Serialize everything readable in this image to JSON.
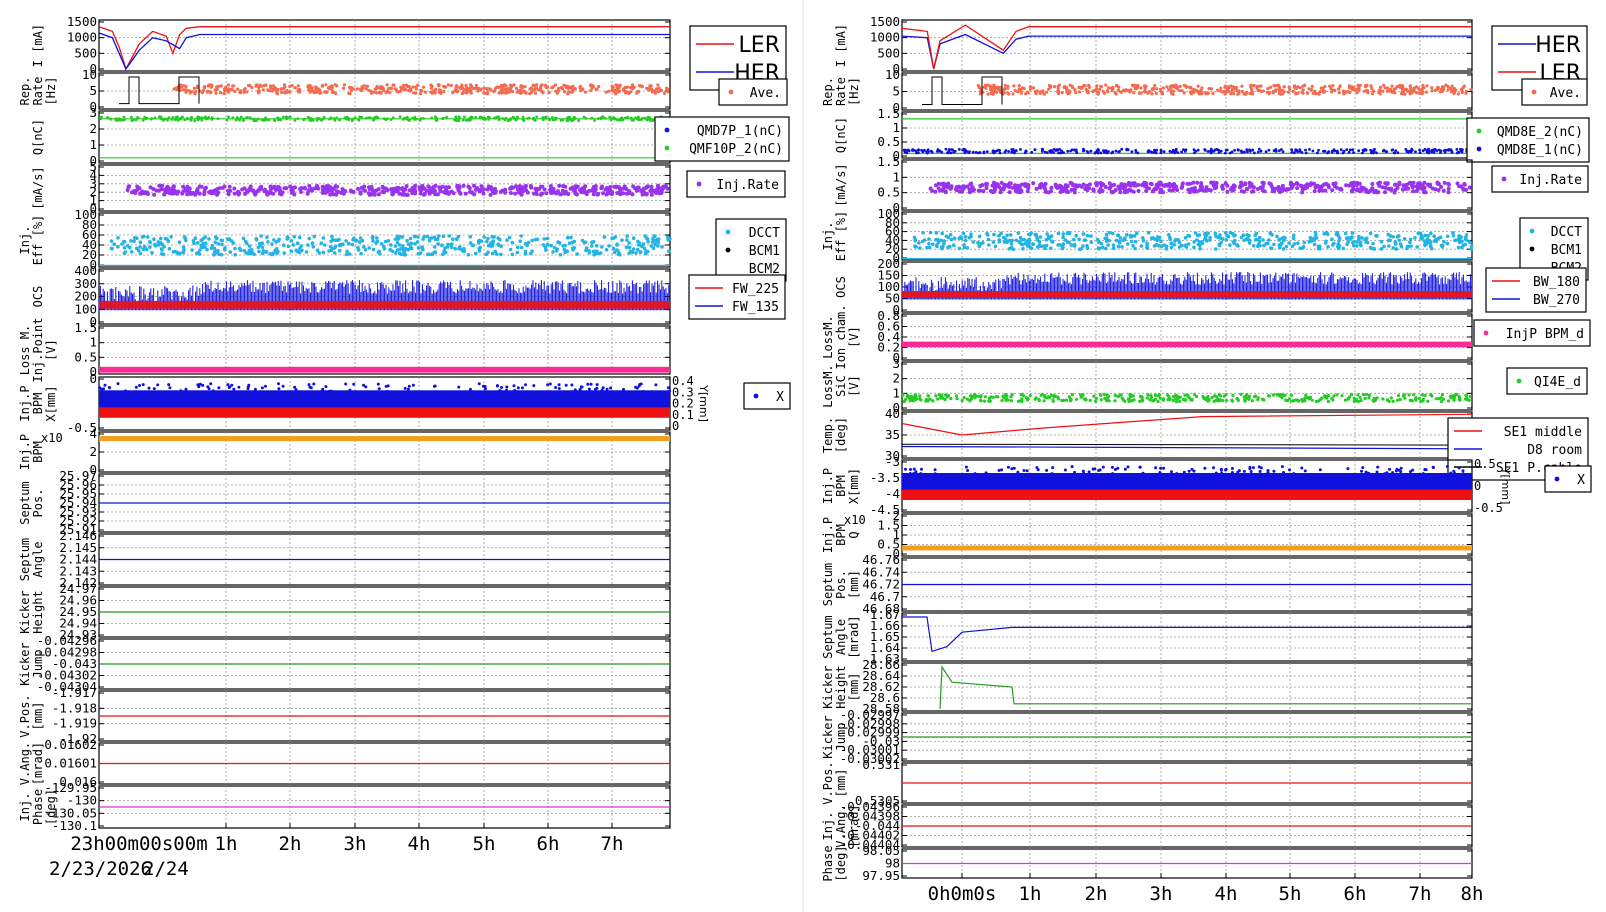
{
  "window": {
    "title": ""
  },
  "colors": {
    "red": "#ee1111",
    "blue": "#1111dd",
    "orange_red": "#f46b50",
    "green": "#22cc22",
    "purple": "#9933ee",
    "cyan": "#22b4e4",
    "black": "#000000",
    "pink": "#ff2a95",
    "orange": "#f0a020",
    "darkgreen": "#229922",
    "magenta": "#dd33dd",
    "grid": "#9a9a9a"
  },
  "left": {
    "x_ticks": [
      "23h00m00s00m",
      "1h",
      "2h",
      "3h",
      "4h",
      "5h",
      "6h",
      "7h"
    ],
    "date_label": "2/23/2026",
    "date_label2": "2/24",
    "panels": [
      {
        "id": "current",
        "ylabel": [
          "I [mA]"
        ],
        "ticks": [
          "1500",
          "1000",
          "500",
          "0"
        ],
        "legend": [
          {
            "label": "LER",
            "color": "red",
            "kind": "line"
          },
          {
            "label": "HER",
            "color": "blue",
            "kind": "line"
          }
        ]
      },
      {
        "id": "rep",
        "ylabel": [
          "Rep.",
          "Rate",
          "[Hz]"
        ],
        "ticks": [
          "10",
          "5",
          "0"
        ],
        "legend": [
          {
            "label": "Ave.",
            "color": "orange_red",
            "kind": "dot"
          }
        ]
      },
      {
        "id": "charge",
        "ylabel": [
          "Q[nC]"
        ],
        "ticks": [
          "3",
          "2",
          "1",
          "0"
        ],
        "legend": [
          {
            "label": "QMD7P_1(nC)",
            "color": "blue",
            "kind": "dot"
          },
          {
            "label": "QMF10P_2(nC)",
            "color": "green",
            "kind": "dot"
          }
        ]
      },
      {
        "id": "injrate",
        "ylabel": [
          "[mA/s]"
        ],
        "ticks": [
          "5",
          "4",
          "3",
          "2",
          "1",
          "0"
        ],
        "legend": [
          {
            "label": "Inj.Rate",
            "color": "purple",
            "kind": "dot"
          }
        ]
      },
      {
        "id": "eff",
        "ylabel": [
          "Inj.",
          "Eff [%]"
        ],
        "ticks": [
          "100",
          "80",
          "60",
          "40",
          "20",
          "0"
        ],
        "legend": [
          {
            "label": "DCCT",
            "color": "cyan",
            "kind": "dot"
          },
          {
            "label": "BCM1",
            "color": "black",
            "kind": "dot"
          },
          {
            "label": "BCM2",
            "color": "black",
            "kind": "none"
          }
        ]
      },
      {
        "id": "ocs",
        "ylabel": [
          "OCS"
        ],
        "ticks": [
          "400",
          "300",
          "200",
          "100",
          "0"
        ],
        "legend": [
          {
            "label": "FW_225",
            "color": "red",
            "kind": "line"
          },
          {
            "label": "FW_135",
            "color": "blue",
            "kind": "line"
          }
        ]
      },
      {
        "id": "loss",
        "ylabel": [
          "Loss M.",
          "Inj.Point",
          "[V]"
        ],
        "ticks": [
          "1.5",
          "1",
          "0.5",
          "0"
        ],
        "legend": []
      },
      {
        "id": "bpm",
        "ylabel": [
          "Inj.P",
          "BPM",
          "X[mm]"
        ],
        "ticks": [
          "0",
          "-0.5"
        ],
        "right_ticks": [
          "0.4",
          "0.3",
          "0.2",
          "0.1",
          "0"
        ],
        "right_label": "Y[mm]",
        "legend": [
          {
            "label": "X",
            "color": "blue",
            "kind": "dot"
          }
        ]
      },
      {
        "id": "bpmq",
        "ylabel": [
          "Inj.P",
          "BPM"
        ],
        "ticks": [
          "4",
          "2",
          "0"
        ],
        "exp": "x10",
        "legend": []
      },
      {
        "id": "septpos",
        "ylabel": [
          "Septum",
          "Pos."
        ],
        "ticks": [
          "25.97",
          "25.96",
          "25.95",
          "25.94",
          "25.93",
          "25.92",
          "25.91"
        ],
        "legend": []
      },
      {
        "id": "septang",
        "ylabel": [
          "Septum",
          "Angle"
        ],
        "ticks": [
          "2.146",
          "2.145",
          "2.144",
          "2.143",
          "2.142"
        ],
        "legend": []
      },
      {
        "id": "kheight",
        "ylabel": [
          "Kicker",
          "Height"
        ],
        "ticks": [
          "24.97",
          "24.96",
          "24.95",
          "24.94",
          "24.93"
        ],
        "legend": []
      },
      {
        "id": "kjump",
        "ylabel": [
          "Kicker",
          "Jump"
        ],
        "ticks": [
          "-0.04296",
          "-0.04298",
          "-0.043",
          "-0.04302",
          "-0.04304"
        ],
        "legend": []
      },
      {
        "id": "vpos",
        "ylabel": [
          "V.Pos.",
          "[mm]"
        ],
        "ticks": [
          "-1.917",
          "-1.918",
          "-1.919",
          "-1.92"
        ],
        "legend": []
      },
      {
        "id": "vang",
        "ylabel": [
          "V.Ang.",
          "[mrad]"
        ],
        "ticks": [
          "0.01602",
          "0.01601",
          "0.016"
        ],
        "legend": []
      },
      {
        "id": "phase",
        "ylabel": [
          "Inj.",
          "Phase",
          "[deg]"
        ],
        "ticks": [
          "-129.95",
          "-130",
          "-130.05",
          "-130.1"
        ],
        "legend": []
      }
    ]
  },
  "right": {
    "x_ticks": [
      "0h0m0s",
      "1h",
      "2h",
      "3h",
      "4h",
      "5h",
      "6h",
      "7h",
      "8h"
    ],
    "panels": [
      {
        "id": "current",
        "ylabel": [
          "I [mA]"
        ],
        "ticks": [
          "1500",
          "1000",
          "500",
          "0"
        ],
        "legend": [
          {
            "label": "HER",
            "color": "blue",
            "kind": "line"
          },
          {
            "label": "LER",
            "color": "red",
            "kind": "line"
          }
        ]
      },
      {
        "id": "rep",
        "ylabel": [
          "Rep.",
          "Rate",
          "[Hz]"
        ],
        "ticks": [
          "10",
          "5",
          "0"
        ],
        "legend": [
          {
            "label": "Ave.",
            "color": "orange_red",
            "kind": "dot"
          }
        ]
      },
      {
        "id": "charge",
        "ylabel": [
          "Q[nC]"
        ],
        "ticks": [
          "1.5",
          "1",
          "0.5",
          "0"
        ],
        "legend": [
          {
            "label": "QMD8E_2(nC)",
            "color": "green",
            "kind": "dot"
          },
          {
            "label": "QMD8E_1(nC)",
            "color": "blue",
            "kind": "dot"
          }
        ]
      },
      {
        "id": "injrate",
        "ylabel": [
          "[mA/s]"
        ],
        "ticks": [
          "1.5",
          "1",
          "0.5",
          "0"
        ],
        "legend": [
          {
            "label": "Inj.Rate",
            "color": "purple",
            "kind": "dot"
          }
        ]
      },
      {
        "id": "eff",
        "ylabel": [
          "Inj.",
          "Eff [%]"
        ],
        "ticks": [
          "100",
          "80",
          "60",
          "40",
          "20",
          "0"
        ],
        "legend": [
          {
            "label": "DCCT",
            "color": "cyan",
            "kind": "dot"
          },
          {
            "label": "BCM1",
            "color": "black",
            "kind": "dot"
          },
          {
            "label": "BCM2",
            "color": "black",
            "kind": "none"
          }
        ]
      },
      {
        "id": "ocs",
        "ylabel": [
          "OCS"
        ],
        "ticks": [
          "200",
          "150",
          "100",
          "50",
          "0"
        ],
        "legend": [
          {
            "label": "BW_180",
            "color": "red",
            "kind": "line"
          },
          {
            "label": "BW_270",
            "color": "blue",
            "kind": "line"
          }
        ]
      },
      {
        "id": "lossion",
        "ylabel": [
          "LossM.",
          "Ion cham.",
          "[V]"
        ],
        "ticks": [
          "0.8",
          "0.6",
          "0.4",
          "0.2",
          "0"
        ],
        "legend": [
          {
            "label": "InjP BPM_d",
            "color": "pink",
            "kind": "dot"
          }
        ]
      },
      {
        "id": "losssic",
        "ylabel": [
          "LossM.",
          "SiC",
          "[V]"
        ],
        "ticks": [
          "3",
          "2",
          "1",
          "0"
        ],
        "legend": [
          {
            "label": "QI4E_d",
            "color": "green",
            "kind": "dot"
          }
        ]
      },
      {
        "id": "temp",
        "ylabel": [
          "Temp.",
          "[deg]"
        ],
        "ticks": [
          "40",
          "35",
          "30"
        ],
        "legend": [
          {
            "label": "SE1 middle",
            "color": "red",
            "kind": "line"
          },
          {
            "label": "D8 room",
            "color": "blue",
            "kind": "line"
          },
          {
            "label": "SE1 P.cable",
            "color": "black",
            "kind": "line"
          }
        ]
      },
      {
        "id": "bpm",
        "ylabel": [
          "Inj.P",
          "BPM",
          "X[mm]"
        ],
        "ticks": [
          "-3",
          "-3.5",
          "-4",
          "-4.5"
        ],
        "right_ticks": [
          "0.5",
          "0",
          "-0.5"
        ],
        "right_label": "Y[mm]",
        "legend": [
          {
            "label": "X",
            "color": "blue",
            "kind": "dot"
          }
        ]
      },
      {
        "id": "bpmq",
        "ylabel": [
          "Inj.P",
          "BPM",
          "Q"
        ],
        "ticks": [
          "2",
          "1.5",
          "1",
          "0.5",
          "0"
        ],
        "exp": "x10",
        "legend": []
      },
      {
        "id": "septpos",
        "ylabel": [
          "Septum",
          "Pos.",
          "[mm]"
        ],
        "ticks": [
          "46.76",
          "46.74",
          "46.72",
          "46.7",
          "46.68"
        ],
        "legend": []
      },
      {
        "id": "septang",
        "ylabel": [
          "Septum",
          "Angle",
          "[mrad]"
        ],
        "ticks": [
          "1.67",
          "1.66",
          "1.65",
          "1.64",
          "1.63"
        ],
        "legend": []
      },
      {
        "id": "kheight",
        "ylabel": [
          "Kicker",
          "Height",
          "[mm]"
        ],
        "ticks": [
          "28.66",
          "28.64",
          "28.62",
          "28.6",
          "28.58"
        ],
        "legend": []
      },
      {
        "id": "kjump",
        "ylabel": [
          "Kicker",
          "Jump"
        ],
        "ticks": [
          "-0.02997",
          "-0.02998",
          "-0.02999",
          "-0.03",
          "-0.03001",
          "-0.03002"
        ],
        "legend": []
      },
      {
        "id": "vpos",
        "ylabel": [
          "V.Pos.",
          "[mm]"
        ],
        "ticks": [
          "0.531",
          "0.5305"
        ],
        "legend": []
      },
      {
        "id": "vang",
        "ylabel": [
          "Inj.",
          "V.Ang.",
          "[mrad]"
        ],
        "ticks": [
          "-0.04396",
          "-0.04398",
          "-0.044",
          "-0.04402",
          "-0.04404"
        ],
        "legend": []
      },
      {
        "id": "phase",
        "ylabel": [
          "Phase",
          "[deg]"
        ],
        "ticks": [
          "98.05",
          "98",
          "97.95"
        ],
        "legend": []
      }
    ]
  },
  "chart_data": [
    {
      "type": "line",
      "title": "",
      "xlabel": "",
      "x_range_hours": [
        -0.5,
        8
      ],
      "series": [
        {
          "name": "LER",
          "panel": "current",
          "x": [
            -0.5,
            -0.3,
            -0.2,
            -0.1,
            0.1,
            0.3,
            0.5,
            0.6,
            0.7,
            0.8,
            1.0,
            8.0
          ],
          "values": [
            1350,
            1200,
            700,
            0,
            800,
            1200,
            1050,
            500,
            1100,
            1300,
            1350,
            1350
          ]
        },
        {
          "name": "HER",
          "panel": "current",
          "x": [
            -0.5,
            -0.3,
            -0.1,
            0.1,
            0.3,
            0.5,
            0.7,
            0.8,
            1.0,
            8.0
          ],
          "values": [
            1150,
            1000,
            0,
            600,
            1000,
            900,
            650,
            1000,
            1100,
            1100
          ]
        }
      ]
    },
    {
      "type": "line",
      "title": "",
      "xlabel": "",
      "x_range_hours": [
        -1,
        8
      ],
      "series": [
        {
          "name": "HER",
          "panel": "current",
          "x": [
            -1,
            -0.6,
            -0.5,
            -0.4,
            0,
            0.4,
            0.6,
            0.8,
            1.0,
            8.0
          ],
          "values": [
            1050,
            1000,
            0,
            800,
            1100,
            700,
            500,
            950,
            1050,
            1050
          ]
        },
        {
          "name": "LER",
          "panel": "current",
          "x": [
            -1,
            -0.6,
            -0.5,
            -0.4,
            0,
            0.3,
            0.6,
            0.8,
            1.0,
            8.0
          ],
          "values": [
            1300,
            1200,
            0,
            900,
            1400,
            1000,
            600,
            1200,
            1350,
            1350
          ]
        }
      ]
    }
  ]
}
